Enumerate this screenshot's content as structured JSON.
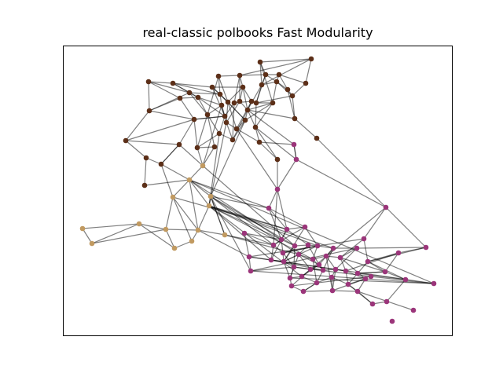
{
  "title": "real-classic polbooks Fast Modularity",
  "colors": {
    "community_0": "#5c2f18",
    "community_1": "#c19a61",
    "community_2": "#9b357a",
    "edge": "#000000",
    "frame": "#000000"
  }
}
